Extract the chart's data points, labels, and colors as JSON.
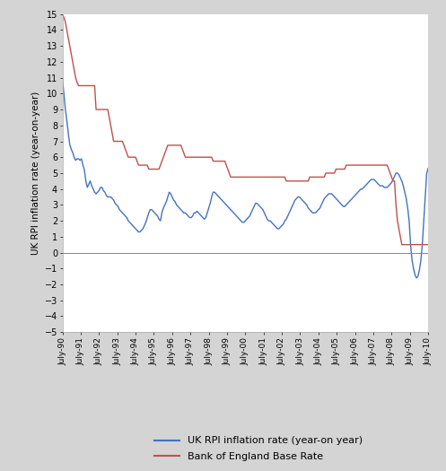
{
  "ylabel": "UK RPI inflation rate (year-on-year)",
  "ylim": [
    -5,
    15
  ],
  "yticks": [
    -5,
    -4,
    -3,
    -2,
    -1,
    0,
    1,
    2,
    3,
    4,
    5,
    6,
    7,
    8,
    9,
    10,
    11,
    12,
    13,
    14,
    15
  ],
  "xtick_labels": [
    "July-90",
    "July-91",
    "July-92",
    "July-93",
    "July-94",
    "July-95",
    "July-96",
    "July-97",
    "July-98",
    "July-99",
    "July-00",
    "July-01",
    "July-02",
    "July-03",
    "July-04",
    "July-05",
    "July-06",
    "July-07",
    "July-08",
    "July-09",
    "July-10"
  ],
  "rpi_color": "#4472C4",
  "boe_color": "#C0504D",
  "legend_rpi": "UK RPI inflation rate (year-on year)",
  "legend_boe": "Bank of England Base Rate",
  "background_color": "#ffffff",
  "outer_background": "#d4d4d4",
  "rpi_data": [
    10.9,
    10.0,
    9.0,
    8.3,
    7.5,
    6.8,
    6.5,
    6.3,
    6.0,
    5.8,
    5.9,
    5.9,
    5.8,
    5.9,
    5.5,
    5.2,
    4.5,
    4.1,
    4.3,
    4.5,
    4.2,
    4.0,
    3.8,
    3.7,
    3.8,
    3.9,
    4.1,
    4.1,
    3.9,
    3.8,
    3.6,
    3.5,
    3.5,
    3.5,
    3.4,
    3.3,
    3.1,
    3.0,
    2.9,
    2.7,
    2.6,
    2.5,
    2.4,
    2.3,
    2.2,
    2.0,
    1.9,
    1.8,
    1.7,
    1.6,
    1.5,
    1.4,
    1.3,
    1.3,
    1.4,
    1.5,
    1.7,
    1.9,
    2.2,
    2.5,
    2.7,
    2.7,
    2.6,
    2.5,
    2.4,
    2.3,
    2.1,
    2.0,
    2.5,
    2.8,
    3.0,
    3.2,
    3.5,
    3.8,
    3.7,
    3.5,
    3.3,
    3.2,
    3.0,
    2.9,
    2.8,
    2.7,
    2.6,
    2.5,
    2.5,
    2.4,
    2.3,
    2.2,
    2.2,
    2.3,
    2.5,
    2.5,
    2.6,
    2.5,
    2.4,
    2.3,
    2.2,
    2.1,
    2.2,
    2.5,
    2.8,
    3.1,
    3.5,
    3.8,
    3.8,
    3.7,
    3.6,
    3.5,
    3.4,
    3.3,
    3.2,
    3.1,
    3.0,
    2.9,
    2.8,
    2.7,
    2.6,
    2.5,
    2.4,
    2.3,
    2.2,
    2.1,
    2.0,
    1.9,
    1.9,
    2.0,
    2.1,
    2.2,
    2.3,
    2.5,
    2.7,
    2.9,
    3.1,
    3.1,
    3.0,
    2.9,
    2.8,
    2.7,
    2.5,
    2.3,
    2.1,
    2.0,
    2.0,
    1.9,
    1.8,
    1.7,
    1.6,
    1.5,
    1.5,
    1.6,
    1.7,
    1.8,
    2.0,
    2.1,
    2.3,
    2.5,
    2.7,
    2.9,
    3.1,
    3.3,
    3.4,
    3.5,
    3.5,
    3.4,
    3.3,
    3.2,
    3.1,
    3.0,
    2.8,
    2.7,
    2.6,
    2.5,
    2.5,
    2.5,
    2.6,
    2.7,
    2.8,
    3.0,
    3.2,
    3.4,
    3.5,
    3.6,
    3.7,
    3.7,
    3.7,
    3.6,
    3.5,
    3.4,
    3.3,
    3.2,
    3.1,
    3.0,
    2.9,
    2.9,
    3.0,
    3.1,
    3.2,
    3.3,
    3.4,
    3.5,
    3.6,
    3.7,
    3.8,
    3.9,
    4.0,
    4.0,
    4.1,
    4.2,
    4.3,
    4.4,
    4.5,
    4.6,
    4.6,
    4.6,
    4.5,
    4.4,
    4.3,
    4.2,
    4.2,
    4.2,
    4.1,
    4.1,
    4.1,
    4.2,
    4.3,
    4.4,
    4.6,
    4.8,
    5.0,
    5.0,
    4.9,
    4.7,
    4.5,
    4.2,
    3.8,
    3.4,
    2.8,
    2.0,
    0.5,
    -0.5,
    -1.0,
    -1.4,
    -1.6,
    -1.5,
    -1.1,
    -0.5,
    0.5,
    2.0,
    3.5,
    5.0,
    5.3
  ],
  "boe_data": [
    15.0,
    14.8,
    14.5,
    14.0,
    13.5,
    13.0,
    12.5,
    12.0,
    11.5,
    11.0,
    10.7,
    10.5,
    10.5,
    10.5,
    10.5,
    10.5,
    10.5,
    10.5,
    10.5,
    10.5,
    10.5,
    10.5,
    10.5,
    9.0,
    9.0,
    9.0,
    9.0,
    9.0,
    9.0,
    9.0,
    9.0,
    9.0,
    8.5,
    8.0,
    7.5,
    7.0,
    7.0,
    7.0,
    7.0,
    7.0,
    7.0,
    7.0,
    6.75,
    6.5,
    6.25,
    6.0,
    6.0,
    6.0,
    6.0,
    6.0,
    6.0,
    5.75,
    5.5,
    5.5,
    5.5,
    5.5,
    5.5,
    5.5,
    5.5,
    5.25,
    5.25,
    5.25,
    5.25,
    5.25,
    5.25,
    5.25,
    5.25,
    5.5,
    5.75,
    6.0,
    6.25,
    6.5,
    6.75,
    6.75,
    6.75,
    6.75,
    6.75,
    6.75,
    6.75,
    6.75,
    6.75,
    6.75,
    6.5,
    6.25,
    6.0,
    6.0,
    6.0,
    6.0,
    6.0,
    6.0,
    6.0,
    6.0,
    6.0,
    6.0,
    6.0,
    6.0,
    6.0,
    6.0,
    6.0,
    6.0,
    6.0,
    6.0,
    6.0,
    5.75,
    5.75,
    5.75,
    5.75,
    5.75,
    5.75,
    5.75,
    5.75,
    5.75,
    5.5,
    5.25,
    5.0,
    4.75,
    4.75,
    4.75,
    4.75,
    4.75,
    4.75,
    4.75,
    4.75,
    4.75,
    4.75,
    4.75,
    4.75,
    4.75,
    4.75,
    4.75,
    4.75,
    4.75,
    4.75,
    4.75,
    4.75,
    4.75,
    4.75,
    4.75,
    4.75,
    4.75,
    4.75,
    4.75,
    4.75,
    4.75,
    4.75,
    4.75,
    4.75,
    4.75,
    4.75,
    4.75,
    4.75,
    4.75,
    4.75,
    4.5,
    4.5,
    4.5,
    4.5,
    4.5,
    4.5,
    4.5,
    4.5,
    4.5,
    4.5,
    4.5,
    4.5,
    4.5,
    4.5,
    4.5,
    4.5,
    4.75,
    4.75,
    4.75,
    4.75,
    4.75,
    4.75,
    4.75,
    4.75,
    4.75,
    4.75,
    4.75,
    5.0,
    5.0,
    5.0,
    5.0,
    5.0,
    5.0,
    5.0,
    5.25,
    5.25,
    5.25,
    5.25,
    5.25,
    5.25,
    5.25,
    5.5,
    5.5,
    5.5,
    5.5,
    5.5,
    5.5,
    5.5,
    5.5,
    5.5,
    5.5,
    5.5,
    5.5,
    5.5,
    5.5,
    5.5,
    5.5,
    5.5,
    5.5,
    5.5,
    5.5,
    5.5,
    5.5,
    5.5,
    5.5,
    5.5,
    5.5,
    5.5,
    5.5,
    5.5,
    5.25,
    5.0,
    4.75,
    4.5,
    4.5,
    3.0,
    2.0,
    1.5,
    1.0,
    0.5,
    0.5,
    0.5,
    0.5,
    0.5,
    0.5,
    0.5,
    0.5,
    0.5,
    0.5,
    0.5,
    0.5,
    0.5,
    0.5,
    0.5,
    0.5,
    0.5,
    0.5,
    0.5
  ]
}
